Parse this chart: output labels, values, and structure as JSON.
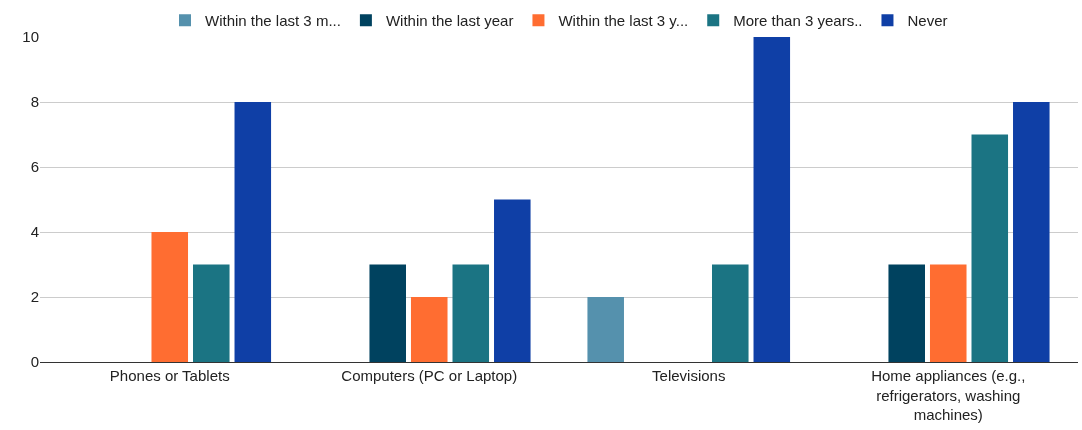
{
  "chart_data": {
    "type": "bar",
    "categories": [
      "Phones or Tablets",
      "Computers (PC or Laptop)",
      "Televisions",
      "Home appliances (e.g., refrigerators, washing machines)"
    ],
    "series": [
      {
        "name": "Within the last 3 m...",
        "color": "#5591ad",
        "values": [
          0,
          0,
          2,
          0
        ]
      },
      {
        "name": "Within the last year",
        "color": "#00425f",
        "values": [
          0,
          3,
          0,
          3
        ]
      },
      {
        "name": "Within the last 3 y...",
        "color": "#ff6d31",
        "values": [
          4,
          2,
          0,
          3
        ]
      },
      {
        "name": "More than 3 years..",
        "color": "#1b7483",
        "values": [
          3,
          3,
          3,
          7
        ]
      },
      {
        "name": "Never",
        "color": "#0f3fa6",
        "values": [
          8,
          5,
          10,
          8
        ]
      }
    ],
    "ylim": [
      0,
      10
    ],
    "yticks": [
      0,
      2,
      4,
      6,
      8,
      10
    ],
    "grid": "y",
    "legend": "top"
  }
}
